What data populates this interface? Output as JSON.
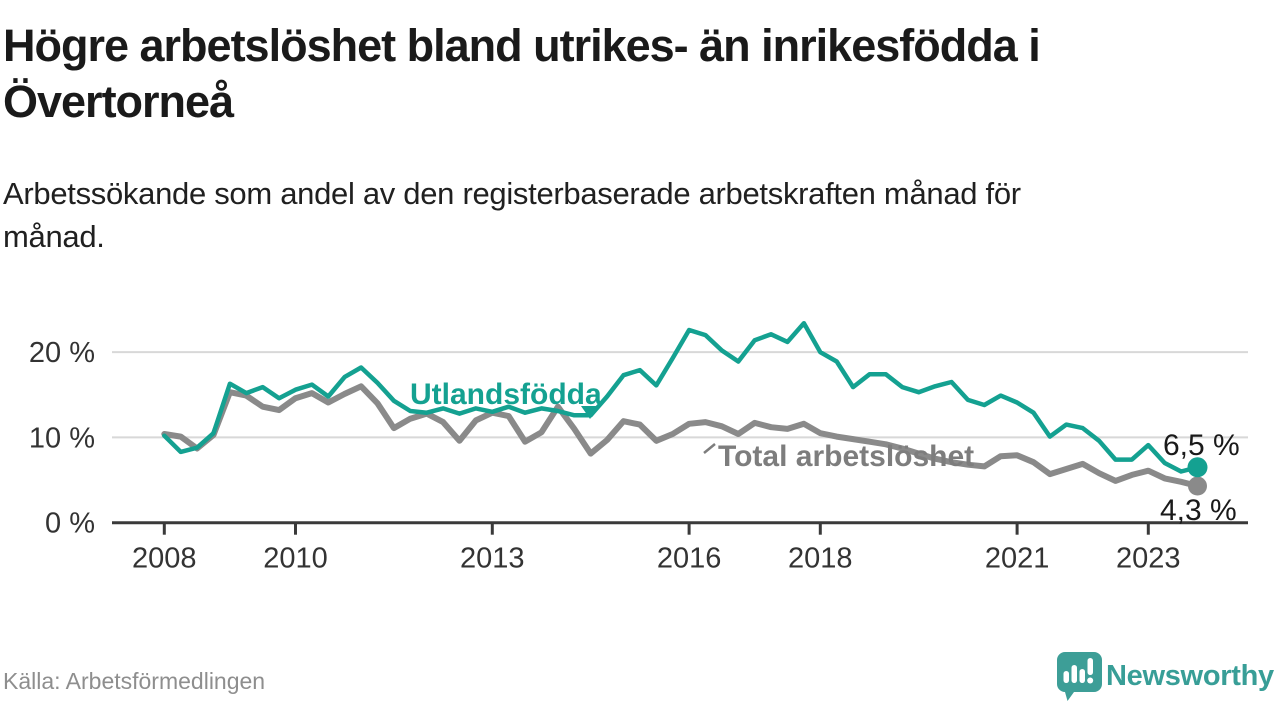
{
  "header": {
    "title": "Högre arbetslöshet bland utrikes- än inrikesfödda i\nÖvertorneå",
    "subtitle": "Arbetssökande som andel av den registerbaserade arbetskraften månad för\nmånad."
  },
  "chart_data": {
    "type": "line",
    "title": "Högre arbetslöshet bland utrikes- än inrikesfödda i Övertorneå",
    "xlabel": "",
    "ylabel": "Arbetssökande som andel av den registerbaserade arbetskraften (%)",
    "unit": "%",
    "grid": "horizontal",
    "xlim": [
      2007.2,
      2024.6
    ],
    "ylim": [
      0,
      24
    ],
    "x_start": 2008,
    "x_step": 0.25,
    "x_ticks": [
      {
        "value": 2008,
        "label": "2008"
      },
      {
        "value": 2010,
        "label": "2010"
      },
      {
        "value": 2013,
        "label": "2013"
      },
      {
        "value": 2016,
        "label": "2016"
      },
      {
        "value": 2018,
        "label": "2018"
      },
      {
        "value": 2021,
        "label": "2021"
      },
      {
        "value": 2023,
        "label": "2023"
      }
    ],
    "y_ticks": [
      {
        "value": 0,
        "label": "0 %"
      },
      {
        "value": 10,
        "label": "10 %"
      },
      {
        "value": 20,
        "label": "20 %"
      }
    ],
    "series": [
      {
        "name": "Utlandsfödda",
        "color": "#14a191",
        "end_label": "6,5 %",
        "end_value": 6.5,
        "values": [
          10.2,
          8.3,
          8.8,
          10.5,
          16.3,
          15.2,
          15.9,
          14.6,
          15.6,
          16.2,
          14.8,
          17.1,
          18.2,
          16.4,
          14.3,
          13.1,
          12.9,
          13.4,
          12.8,
          13.4,
          13.0,
          13.6,
          12.9,
          13.4,
          13.1,
          12.6,
          12.6,
          14.8,
          17.3,
          17.9,
          16.1,
          19.3,
          22.6,
          22.0,
          20.2,
          18.9,
          21.4,
          22.1,
          21.2,
          23.4,
          20.0,
          18.9,
          15.9,
          17.4,
          17.4,
          15.9,
          15.3,
          16.0,
          16.5,
          14.4,
          13.8,
          14.9,
          14.1,
          12.9,
          10.1,
          11.5,
          11.1,
          9.6,
          7.4,
          7.4,
          9.1,
          7.0,
          6.0,
          6.5
        ]
      },
      {
        "name": "Total arbetslöshet",
        "color": "#8a8a8a",
        "end_label": "4,3 %",
        "end_value": 4.3,
        "values": [
          10.4,
          10.1,
          8.7,
          10.3,
          15.3,
          14.9,
          13.6,
          13.2,
          14.6,
          15.2,
          14.1,
          15.1,
          16.0,
          14.0,
          11.1,
          12.2,
          12.8,
          11.8,
          9.6,
          12.0,
          12.9,
          12.5,
          9.5,
          10.6,
          13.6,
          11.0,
          8.1,
          9.7,
          11.9,
          11.5,
          9.6,
          10.4,
          11.6,
          11.8,
          11.3,
          10.4,
          11.7,
          11.2,
          11.0,
          11.6,
          10.5,
          10.1,
          9.8,
          9.5,
          9.2,
          8.7,
          8.1,
          7.5,
          7.1,
          6.8,
          6.6,
          7.8,
          7.9,
          7.1,
          5.7,
          6.3,
          6.9,
          5.8,
          4.9,
          5.6,
          6.1,
          5.2,
          4.8,
          4.3
        ]
      }
    ]
  },
  "footer": {
    "source": "Källa: Arbetsförmedlingen",
    "brand": "Newsworthy"
  },
  "colors": {
    "teal_line": "#14a191",
    "gray_line": "#8a8a8a",
    "gray_label": "#7d7d7d",
    "axis": "#3a3a3a",
    "gridline": "#d8d8d8",
    "logo_teal": "#3d9e97"
  }
}
